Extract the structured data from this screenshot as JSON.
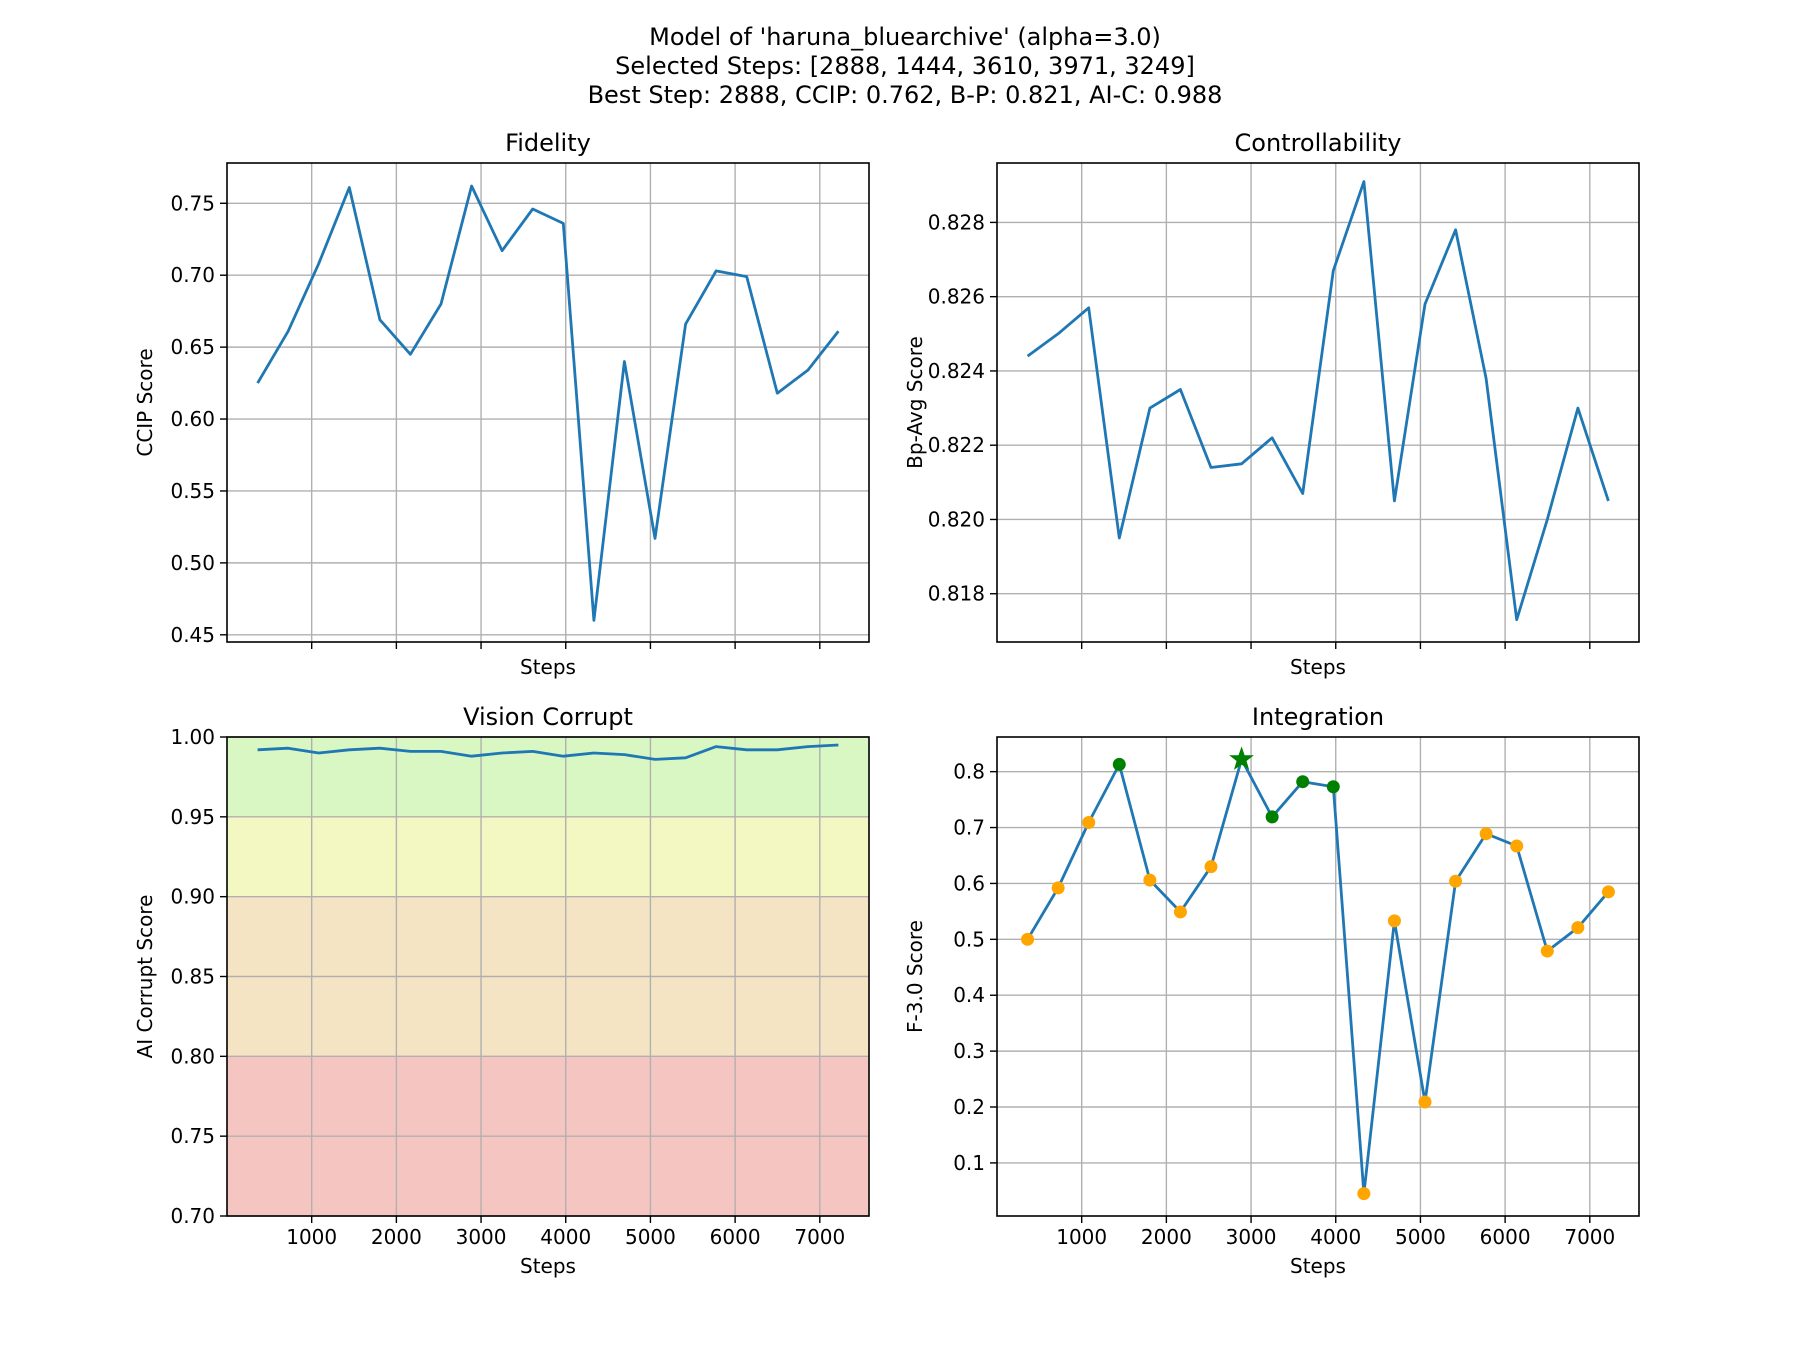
{
  "figure": {
    "title_lines": [
      "Model of 'haruna_bluearchive' (alpha=3.0)",
      "Selected Steps: [2888, 1444, 3610, 3971, 3249]",
      "Best Step: 2888, CCIP: 0.762, B-P: 0.821, AI-C: 0.988"
    ]
  },
  "chart_data": [
    {
      "id": "fidelity",
      "type": "line",
      "title": "Fidelity",
      "xlabel": "Steps",
      "ylabel": "CCIP Score",
      "xlim": [
        0,
        7581
      ],
      "ylim": [
        0.445,
        0.778
      ],
      "xticks": [
        1000,
        2000,
        3000,
        4000,
        5000,
        6000,
        7000
      ],
      "show_xtick_labels": false,
      "yticks": [
        0.45,
        0.5,
        0.55,
        0.6,
        0.65,
        0.7,
        0.75
      ],
      "ytick_labels": [
        "0.45",
        "0.50",
        "0.55",
        "0.60",
        "0.65",
        "0.70",
        "0.75"
      ],
      "grid": true,
      "x": [
        361,
        722,
        1083,
        1444,
        1805,
        2166,
        2527,
        2888,
        3249,
        3610,
        3971,
        4332,
        4693,
        5054,
        5415,
        5776,
        6137,
        6498,
        6859,
        7220
      ],
      "y": [
        0.625,
        0.661,
        0.708,
        0.761,
        0.669,
        0.645,
        0.68,
        0.762,
        0.717,
        0.746,
        0.736,
        0.46,
        0.64,
        0.517,
        0.666,
        0.703,
        0.699,
        0.618,
        0.634,
        0.661
      ]
    },
    {
      "id": "controllability",
      "type": "line",
      "title": "Controllability",
      "xlabel": "Steps",
      "ylabel": "Bp-Avg Score",
      "xlim": [
        0,
        7581
      ],
      "ylim": [
        0.8167,
        0.8296
      ],
      "xticks": [
        1000,
        2000,
        3000,
        4000,
        5000,
        6000,
        7000
      ],
      "show_xtick_labels": false,
      "yticks": [
        0.818,
        0.82,
        0.822,
        0.824,
        0.826,
        0.828
      ],
      "ytick_labels": [
        "0.818",
        "0.820",
        "0.822",
        "0.824",
        "0.826",
        "0.828"
      ],
      "grid": true,
      "x": [
        361,
        722,
        1083,
        1444,
        1805,
        2166,
        2527,
        2888,
        3249,
        3610,
        3971,
        4332,
        4693,
        5054,
        5415,
        5776,
        6137,
        6498,
        6859,
        7220
      ],
      "y": [
        0.8244,
        0.825,
        0.8257,
        0.8195,
        0.823,
        0.8235,
        0.8214,
        0.8215,
        0.8222,
        0.8207,
        0.8267,
        0.8291,
        0.8205,
        0.8258,
        0.8278,
        0.8238,
        0.8173,
        0.82,
        0.823,
        0.8205
      ]
    },
    {
      "id": "vision-corrupt",
      "type": "line",
      "title": "Vision Corrupt",
      "xlabel": "Steps",
      "ylabel": "AI Corrupt Score",
      "xlim": [
        0,
        7581
      ],
      "ylim": [
        0.7,
        1.0
      ],
      "xticks": [
        1000,
        2000,
        3000,
        4000,
        5000,
        6000,
        7000
      ],
      "xtick_labels": [
        "1000",
        "2000",
        "3000",
        "4000",
        "5000",
        "6000",
        "7000"
      ],
      "show_xtick_labels": true,
      "yticks": [
        0.7,
        0.75,
        0.8,
        0.85,
        0.9,
        0.95,
        1.0
      ],
      "ytick_labels": [
        "0.70",
        "0.75",
        "0.80",
        "0.85",
        "0.90",
        "0.95",
        "1.00"
      ],
      "grid": true,
      "bands": [
        {
          "from": 0.7,
          "to": 0.8,
          "color": "#f5c6c1"
        },
        {
          "from": 0.8,
          "to": 0.9,
          "color": "#f5e4c3"
        },
        {
          "from": 0.9,
          "to": 0.95,
          "color": "#f3f7c1"
        },
        {
          "from": 0.95,
          "to": 1.0,
          "color": "#d9f7c3"
        }
      ],
      "x": [
        361,
        722,
        1083,
        1444,
        1805,
        2166,
        2527,
        2888,
        3249,
        3610,
        3971,
        4332,
        4693,
        5054,
        5415,
        5776,
        6137,
        6498,
        6859,
        7220
      ],
      "y": [
        0.992,
        0.993,
        0.99,
        0.992,
        0.993,
        0.991,
        0.991,
        0.988,
        0.99,
        0.991,
        0.988,
        0.99,
        0.989,
        0.986,
        0.987,
        0.994,
        0.992,
        0.992,
        0.994,
        0.995
      ]
    },
    {
      "id": "integration",
      "type": "line",
      "title": "Integration",
      "xlabel": "Steps",
      "ylabel": "F-3.0 Score",
      "xlim": [
        0,
        7581
      ],
      "ylim": [
        0.005,
        0.862
      ],
      "xticks": [
        1000,
        2000,
        3000,
        4000,
        5000,
        6000,
        7000
      ],
      "xtick_labels": [
        "1000",
        "2000",
        "3000",
        "4000",
        "5000",
        "6000",
        "7000"
      ],
      "show_xtick_labels": true,
      "yticks": [
        0.1,
        0.2,
        0.3,
        0.4,
        0.5,
        0.6,
        0.7,
        0.8
      ],
      "ytick_labels": [
        "0.1",
        "0.2",
        "0.3",
        "0.4",
        "0.5",
        "0.6",
        "0.7",
        "0.8"
      ],
      "grid": true,
      "x": [
        361,
        722,
        1083,
        1444,
        1805,
        2166,
        2527,
        2888,
        3249,
        3610,
        3971,
        4332,
        4693,
        5054,
        5415,
        5776,
        6137,
        6498,
        6859,
        7220
      ],
      "y": [
        0.5,
        0.592,
        0.709,
        0.813,
        0.606,
        0.549,
        0.63,
        0.822,
        0.719,
        0.782,
        0.773,
        0.045,
        0.533,
        0.209,
        0.604,
        0.689,
        0.667,
        0.479,
        0.521,
        0.585
      ],
      "selected_steps": [
        2888,
        1444,
        3610,
        3971,
        3249
      ],
      "best_step": 2888,
      "point_color": "#ffa500",
      "selected_color": "#008000",
      "best_marker": "star"
    }
  ],
  "colors": {
    "line": "#1f77b4",
    "grid": "#b0b0b0"
  }
}
